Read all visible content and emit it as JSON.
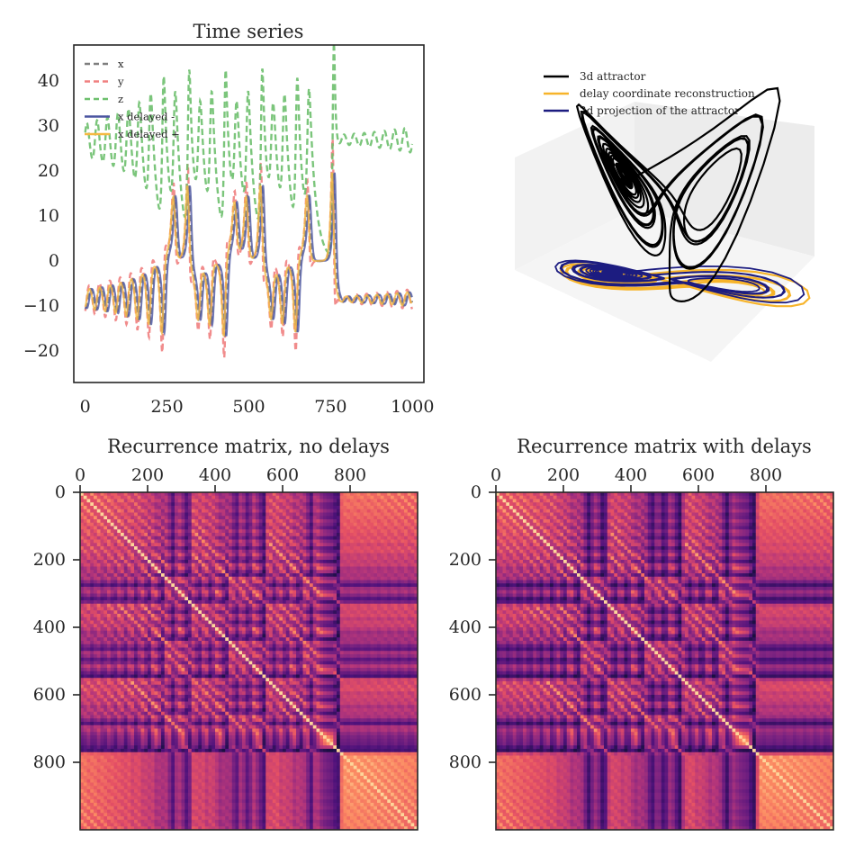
{
  "chart_data": [
    {
      "type": "line",
      "title": "Time series",
      "xlabel": "",
      "ylabel": "",
      "xlim": [
        -35,
        1035
      ],
      "ylim": [
        -27,
        48
      ],
      "xticks": [
        0,
        250,
        500,
        750,
        1000
      ],
      "yticks": [
        -20,
        -10,
        0,
        10,
        20,
        30,
        40
      ],
      "grid": false,
      "legend": "top-left",
      "series": [
        {
          "name": "x",
          "color": "#7f7f7f",
          "style": "dashed"
        },
        {
          "name": "y",
          "color": "#f08080",
          "style": "dashed"
        },
        {
          "name": "z",
          "color": "#6dbf6d",
          "style": "dashed"
        },
        {
          "name": "x delayed -",
          "color": "#4b55a0",
          "style": "solid"
        },
        {
          "name": "x delayed +",
          "color": "#f5b942",
          "style": "solid"
        }
      ]
    },
    {
      "type": "line",
      "title": "",
      "legend": "top-left",
      "grid": false,
      "series": [
        {
          "name": "3d attractor",
          "color": "#000000"
        },
        {
          "name": "delay coordinate reconstruction",
          "color": "#f7b42a"
        },
        {
          "name": "2d projection of the attractor",
          "color": "#1c1c80"
        }
      ]
    },
    {
      "type": "heatmap",
      "title": "Recurrence matrix, no delays",
      "xticks": [
        0,
        200,
        400,
        600,
        800
      ],
      "yticks": [
        0,
        200,
        400,
        600,
        800
      ],
      "xlim": [
        0,
        1000
      ],
      "ylim": [
        1000,
        0
      ],
      "colormap": "magma"
    },
    {
      "type": "heatmap",
      "title": "Recurrence matrix with delays",
      "xticks": [
        0,
        200,
        400,
        600,
        800
      ],
      "yticks": [
        0,
        200,
        400,
        600,
        800
      ],
      "xlim": [
        0,
        1000
      ],
      "ylim": [
        1000,
        0
      ],
      "colormap": "magma"
    }
  ]
}
